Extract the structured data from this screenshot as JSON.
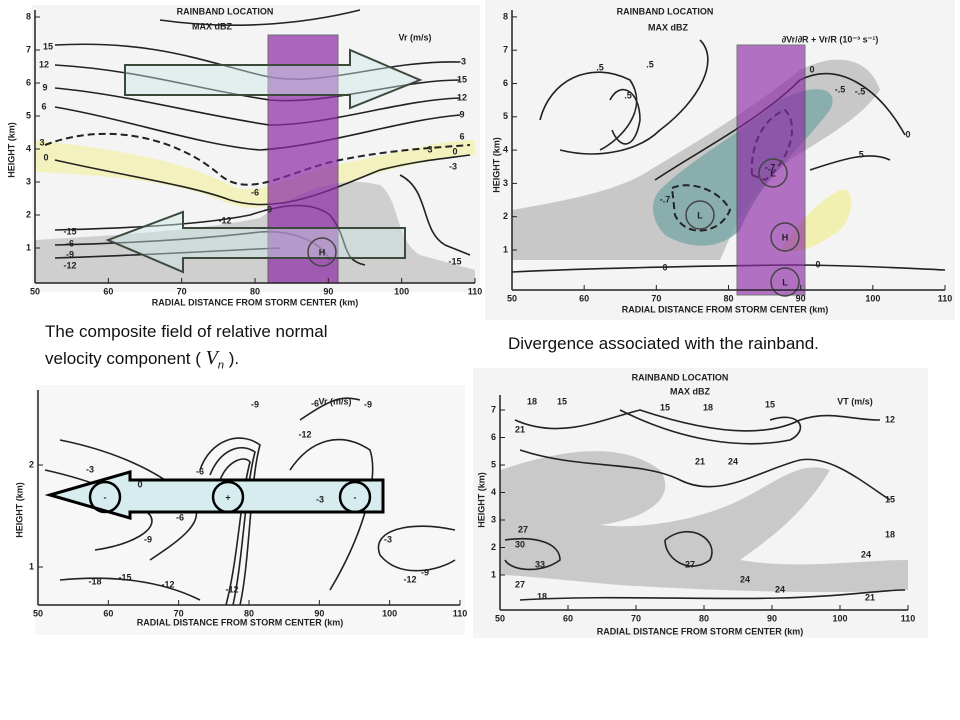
{
  "captions": {
    "velocity_line1": "The composite field of relative normal",
    "velocity_line2_before": "velocity component (",
    "velocity_symbol": "V",
    "velocity_subscript": "n",
    "velocity_line2_after": ").",
    "divergence": "Divergence associated with the rainband."
  },
  "panels": [
    {
      "header": "RAINBAND LOCATION",
      "max_label": "MAX dBZ",
      "quantity": "Vr (m/s)",
      "x_label": "RADIAL DISTANCE FROM STORM CENTER (km)",
      "y_label": "HEIGHT (km)",
      "x_ticks": [
        "50",
        "60",
        "70",
        "80",
        "90",
        "100",
        "110"
      ],
      "y_ticks": [
        "1",
        "2",
        "3",
        "4",
        "5",
        "6",
        "7",
        "8"
      ],
      "markers": [
        "H"
      ],
      "contour_labels": [
        "15",
        "12",
        "9",
        "6",
        "3",
        "0",
        "-3",
        "15",
        "12",
        "9",
        "6",
        "3",
        "0",
        "-3",
        "-6",
        "-9",
        "-12",
        "-15",
        "-6",
        "-9",
        "-12",
        "-15",
        "-6"
      ]
    },
    {
      "header": "RAINBAND LOCATION",
      "max_label": "MAX dBZ",
      "quantity": "∂Vr/∂R + Vr/R (10⁻³ s⁻¹)",
      "x_label": "RADIAL DISTANCE FROM STORM CENTER (km)",
      "y_label": "HEIGHT (km)",
      "x_ticks": [
        "50",
        "60",
        "70",
        "80",
        "90",
        "100",
        "110"
      ],
      "y_ticks": [
        "1",
        "2",
        "3",
        "4",
        "5",
        "6",
        "7",
        "8"
      ],
      "markers": [
        "L",
        "L",
        "H",
        "L"
      ],
      "contour_labels": [
        ".5",
        ".5",
        ".5",
        "0",
        "-.5",
        "-.5",
        "-.7",
        "-.7",
        "0",
        ".5",
        "0",
        "0"
      ]
    },
    {
      "quantity": "Vr (m/s)",
      "x_label": "RADIAL DISTANCE FROM STORM CENTER (km)",
      "y_label": "HEIGHT (km)",
      "x_ticks": [
        "50",
        "60",
        "70",
        "80",
        "90",
        "100",
        "110"
      ],
      "y_ticks": [
        "1",
        "2"
      ],
      "markers": [
        "-",
        "+",
        "-"
      ],
      "contour_labels": [
        "-6",
        "-9",
        "-3",
        "0",
        "-6",
        "-12",
        "-9",
        "-6",
        "-3",
        "-9",
        "-12",
        "-15",
        "-18",
        "-12",
        "-3",
        "-12",
        "-9"
      ]
    },
    {
      "header": "RAINBAND LOCATION",
      "max_label": "MAX dBZ",
      "quantity": "VT (m/s)",
      "x_label": "RADIAL DISTANCE FROM STORM CENTER (km)",
      "y_label": "HEIGHT (km)",
      "x_ticks": [
        "50",
        "60",
        "70",
        "80",
        "90",
        "100",
        "110"
      ],
      "y_ticks": [
        "1",
        "2",
        "3",
        "4",
        "5",
        "6",
        "7"
      ],
      "contour_labels": [
        "18",
        "15",
        "21",
        "15",
        "18",
        "15",
        "12",
        "21",
        "24",
        "15",
        "18",
        "24",
        "27",
        "30",
        "33",
        "27",
        "24",
        "27",
        "24",
        "21",
        "18"
      ]
    }
  ]
}
